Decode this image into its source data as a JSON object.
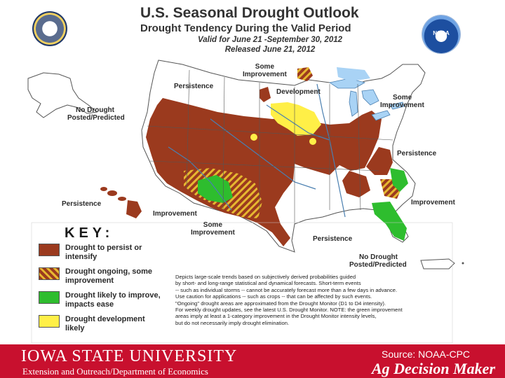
{
  "title": {
    "main": "U.S. Seasonal Drought Outlook",
    "subtitle": "Drought Tendency During the Valid Period",
    "valid": "Valid for June 21 -September 30, 2012",
    "released": "Released June 21, 2012"
  },
  "logos": {
    "left": "commerce-seal-icon",
    "right": "noaa-logo-icon",
    "right_text": "NOAA"
  },
  "map_labels": {
    "no_drought_west": [
      "No Drought",
      "Posted/Predicted"
    ],
    "persistence_nw": "Persistence",
    "some_improvement_n": [
      "Some",
      "Improvement"
    ],
    "development": "Development",
    "some_improvement_ne": [
      "Some",
      "Improvement"
    ],
    "persistence_east": "Persistence",
    "improvement_se": "Improvement",
    "persistence_hi": "Persistence",
    "improvement_sw": "Improvement",
    "some_improvement_s": [
      "Some",
      "Improvement"
    ],
    "persistence_gulf": "Persistence",
    "no_drought_pr": [
      "No Drought",
      "Posted/Predicted"
    ]
  },
  "key": {
    "title": "KEY:",
    "items": [
      {
        "label": "Drought to persist or intensify",
        "color": "#9b3a1e"
      },
      {
        "label": "Drought ongoing, some improvement",
        "color": "#9b3a1e",
        "hatch": "#e6b830"
      },
      {
        "label": "Drought likely to improve, impacts ease",
        "color": "#2ebd2e"
      },
      {
        "label": "Drought development likely",
        "color": "#ffef47"
      }
    ]
  },
  "note_lines": [
    "Depicts large-scale trends based on subjectively derived probabilities guided",
    "by short- and long-range statistical and dynamical forecasts. Short-term events",
    "-- such as individual storms -- cannot be accurately forecast more than a few days in advance.",
    "Use caution for applications -- such as crops -- that can be affected by such events.",
    "\"Ongoing\" drought areas are approximated from the Drought Monitor (D1 to D4 intensity).",
    "For weekly drought updates, see the latest U.S. Drought Monitor. NOTE: the green improvement",
    "areas imply at least a 1-category improvement in the Drought Monitor intensity levels,",
    "but do not necessarily imply drought elimination."
  ],
  "footer": {
    "university": "IOWA STATE UNIVERSITY",
    "extension": "Extension and Outreach/Department of Economics",
    "source": "Source: NOAA-CPC",
    "brand": "Ag Decision Maker"
  },
  "colors": {
    "persist": "#9b3a1e",
    "improve": "#2ebd2e",
    "develop": "#ffef47",
    "hatch": "#e6b830",
    "land": "#ffffff",
    "water": "#a9d3f5",
    "footer": "#c8102e"
  }
}
